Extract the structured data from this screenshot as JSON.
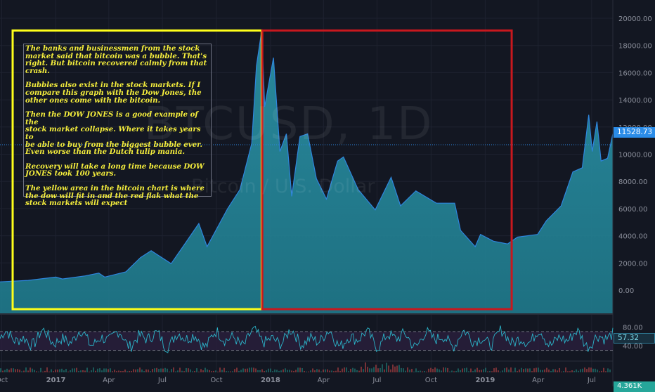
{
  "chart_data": {
    "type": "area",
    "watermark_symbol": "BTCUSD, 1D",
    "watermark_name": "Bitcoin / U.S. Dollar",
    "y_ticks": [
      "20000.00",
      "18000.00",
      "16000.00",
      "14000.00",
      "12000.00",
      "10000.00",
      "8000.00",
      "6000.00",
      "4000.00",
      "2000.00",
      "0.00"
    ],
    "ylim": [
      -1000,
      21000
    ],
    "x_ticks": [
      "Oct",
      "2017",
      "Apr",
      "Jul",
      "Oct",
      "2018",
      "Apr",
      "Jul",
      "Oct",
      "2019",
      "Apr",
      "Jul"
    ],
    "series": [
      {
        "values": [
          [
            "2016-09-28",
            610
          ],
          [
            "2016-11-15",
            720
          ],
          [
            "2017-01-01",
            960
          ],
          [
            "2017-01-12",
            820
          ],
          [
            "2017-02-20",
            1050
          ],
          [
            "2017-03-15",
            1250
          ],
          [
            "2017-03-25",
            960
          ],
          [
            "2017-04-30",
            1350
          ],
          [
            "2017-05-25",
            2400
          ],
          [
            "2017-06-12",
            2900
          ],
          [
            "2017-07-16",
            1950
          ],
          [
            "2017-08-05",
            3200
          ],
          [
            "2017-09-01",
            4900
          ],
          [
            "2017-09-15",
            3200
          ],
          [
            "2017-10-20",
            6000
          ],
          [
            "2017-11-10",
            7400
          ],
          [
            "2017-11-30",
            10800
          ],
          [
            "2017-12-08",
            16500
          ],
          [
            "2017-12-17",
            19100
          ],
          [
            "2017-12-22",
            13500
          ],
          [
            "2018-01-06",
            17100
          ],
          [
            "2018-01-17",
            10200
          ],
          [
            "2018-01-28",
            11500
          ],
          [
            "2018-02-06",
            6900
          ],
          [
            "2018-02-20",
            11300
          ],
          [
            "2018-03-05",
            11500
          ],
          [
            "2018-03-20",
            8200
          ],
          [
            "2018-04-06",
            6700
          ],
          [
            "2018-04-25",
            9500
          ],
          [
            "2018-05-05",
            9800
          ],
          [
            "2018-05-30",
            7400
          ],
          [
            "2018-06-28",
            5900
          ],
          [
            "2018-07-25",
            8300
          ],
          [
            "2018-08-10",
            6200
          ],
          [
            "2018-09-05",
            7300
          ],
          [
            "2018-10-10",
            6400
          ],
          [
            "2018-11-10",
            6400
          ],
          [
            "2018-11-20",
            4400
          ],
          [
            "2018-12-15",
            3200
          ],
          [
            "2018-12-24",
            4100
          ],
          [
            "2019-01-15",
            3600
          ],
          [
            "2019-02-08",
            3400
          ],
          [
            "2019-02-25",
            3900
          ],
          [
            "2019-03-31",
            4100
          ],
          [
            "2019-04-15",
            5100
          ],
          [
            "2019-05-10",
            6200
          ],
          [
            "2019-05-30",
            8700
          ],
          [
            "2019-06-15",
            9000
          ],
          [
            "2019-06-26",
            12900
          ],
          [
            "2019-07-02",
            10200
          ],
          [
            "2019-07-10",
            12400
          ],
          [
            "2019-07-17",
            9500
          ],
          [
            "2019-07-28",
            9700
          ],
          [
            "2019-08-06",
            11500
          ]
        ]
      }
    ],
    "last_price": "11528.73",
    "rsi": {
      "ticks": [
        "80.00",
        "40.00"
      ],
      "last_value": "57.32",
      "upper_band": 70,
      "lower_band": 30
    },
    "volume_last": "4.361K",
    "overlay_boxes": [
      {
        "color": "#ffff1a",
        "from": "2016-09-28",
        "to": "2017-12-17",
        "y_top": 19100,
        "y_bottom": -1400
      },
      {
        "color": "#c8181e",
        "from": "2017-12-18",
        "to": "2019-02-15",
        "y_top": 19100,
        "y_bottom": -1400
      }
    ],
    "current_price_line": 10700
  },
  "annotation": {
    "paragraphs": [
      "The banks and businessmen from the stock\n market said that bitcoin was a bubble. That's\n right. But bitcoin recovered calmly from that\n crash.",
      "Bubbles also exist in the stock markets. If I\n compare this graph with the Dow Jones, the\n other ones come with the bitcoin.",
      "Then the DOW JONES is a good example of the\n stock market collapse. Where it takes years to\n be able to buy from the biggest bubble ever.\n Even worse than the Dutch tulip mania.",
      "Recovery will take a long time because DOW\n JONES took 100 years.",
      "The yellow area in the bitcoin chart is where\n the dow will fit in and the red flak what the\n stock markets will expect"
    ]
  },
  "colors": {
    "background": "#131722",
    "area_fill": "#1f7a8c",
    "line": "#2e86de",
    "grid": "#1e2230",
    "axis_text": "#8c909c",
    "rsi_line": "#2bb4c9",
    "rsi_band": "#2a1f3d"
  }
}
